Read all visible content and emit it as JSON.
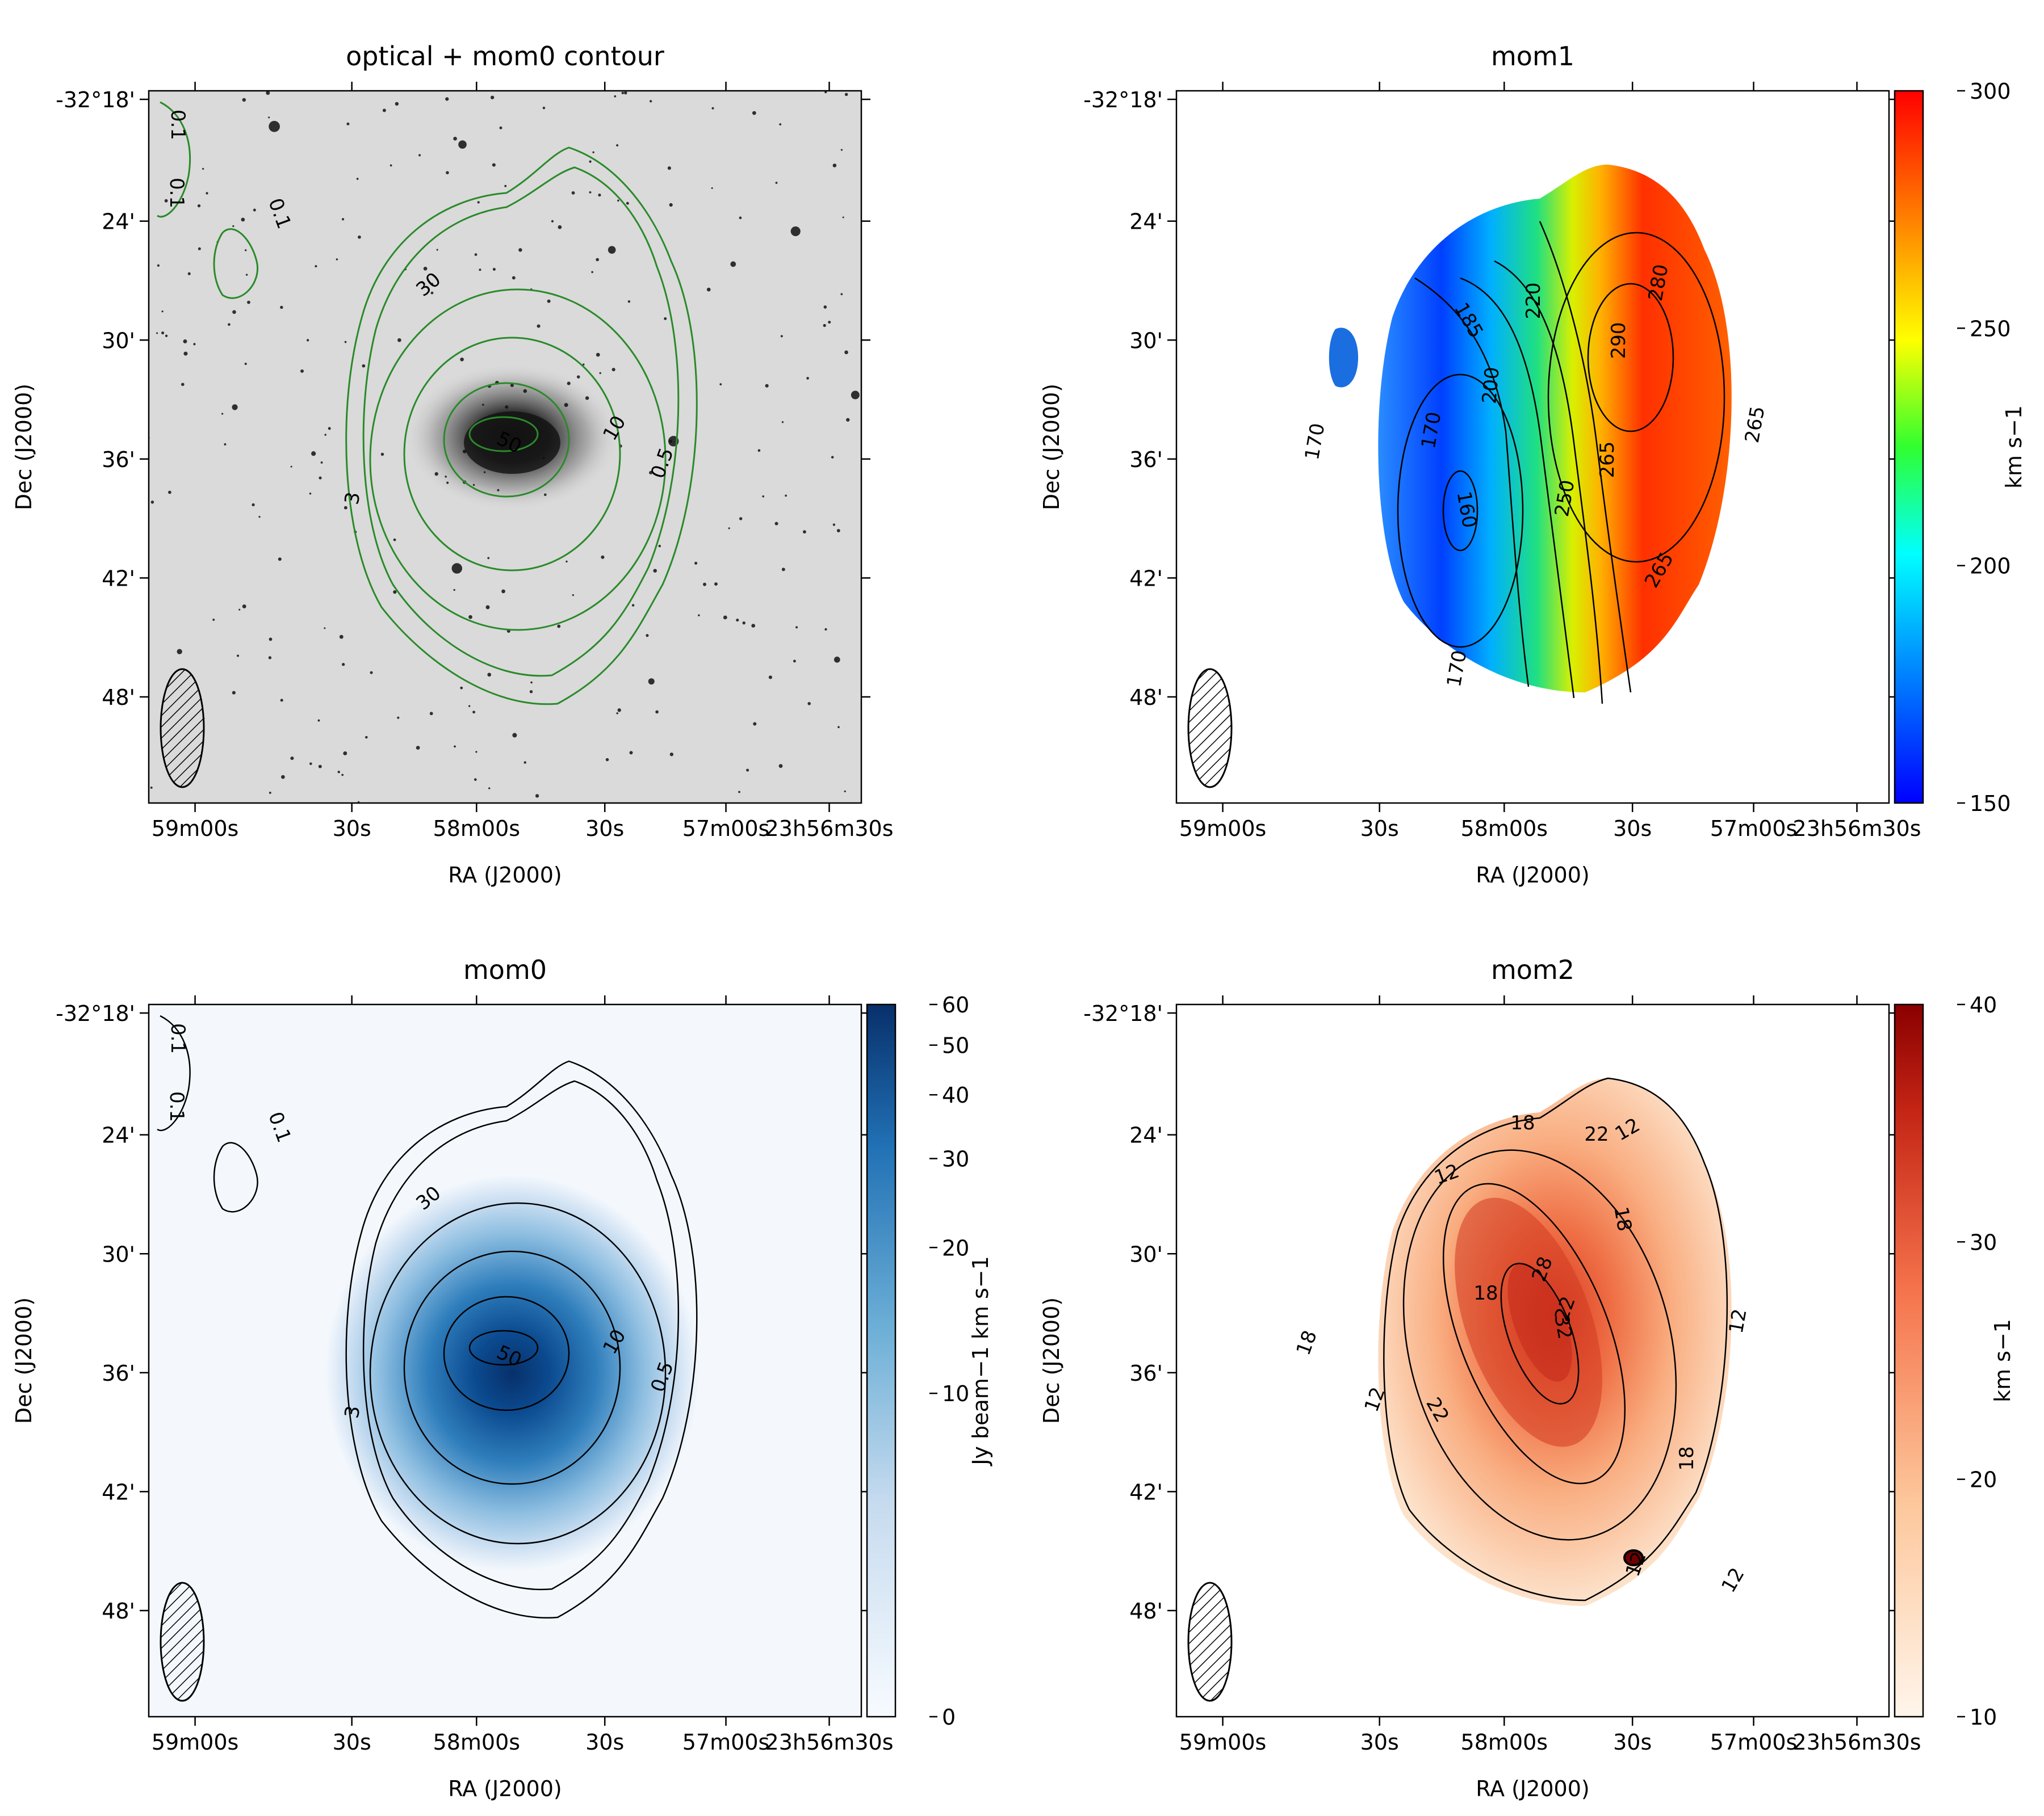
{
  "chart_data": [
    {
      "type": "heatmap",
      "title": "optical + mom0 contour",
      "xlabel": "RA (J2000)",
      "ylabel": "Dec (J2000)",
      "x_ticks": [
        "59m00s",
        "30s",
        "58m00s",
        "30s",
        "57m00s",
        "23h56m30s"
      ],
      "y_ticks": [
        "-32°18'",
        "24'",
        "30'",
        "36'",
        "42'",
        "48'"
      ],
      "contour_color": "#2a8a2a",
      "contour_labels": [
        "0.1",
        "0.1",
        "0.1",
        "0.5",
        "3",
        "10",
        "30",
        "50"
      ],
      "colormap": "greys"
    },
    {
      "type": "heatmap",
      "title": "mom1",
      "xlabel": "RA (J2000)",
      "ylabel": "Dec (J2000)",
      "x_ticks": [
        "59m00s",
        "30s",
        "58m00s",
        "30s",
        "57m00s",
        "23h56m30s"
      ],
      "y_ticks": [
        "-32°18'",
        "24'",
        "30'",
        "36'",
        "42'",
        "48'"
      ],
      "colorbar_label": "km s−1",
      "colorbar_ticks": [
        "150",
        "200",
        "250",
        "300"
      ],
      "colorbar_range": [
        150,
        300
      ],
      "colormap": "rainbow",
      "contour_labels": [
        "160",
        "170",
        "170",
        "170",
        "185",
        "200",
        "220",
        "250",
        "265",
        "265",
        "265",
        "280",
        "290"
      ]
    },
    {
      "type": "heatmap",
      "title": "mom0",
      "xlabel": "RA (J2000)",
      "ylabel": "Dec (J2000)",
      "x_ticks": [
        "59m00s",
        "30s",
        "58m00s",
        "30s",
        "57m00s",
        "23h56m30s"
      ],
      "y_ticks": [
        "-32°18'",
        "24'",
        "30'",
        "36'",
        "42'",
        "48'"
      ],
      "colorbar_label": "Jy beam−1 km s−1",
      "colorbar_ticks": [
        "0",
        "10",
        "20",
        "30",
        "40",
        "50",
        "60"
      ],
      "colorbar_range": [
        0,
        60
      ],
      "colormap": "blues",
      "contour_labels": [
        "0.1",
        "0.1",
        "0.1",
        "0.5",
        "3",
        "10",
        "30",
        "50"
      ]
    },
    {
      "type": "heatmap",
      "title": "mom2",
      "xlabel": "RA (J2000)",
      "ylabel": "Dec (J2000)",
      "x_ticks": [
        "59m00s",
        "30s",
        "58m00s",
        "30s",
        "57m00s",
        "23h56m30s"
      ],
      "y_ticks": [
        "-32°18'",
        "24'",
        "30'",
        "36'",
        "42'",
        "48'"
      ],
      "colorbar_label": "km s−1",
      "colorbar_ticks": [
        "10",
        "20",
        "30",
        "40"
      ],
      "colorbar_range": [
        10,
        40
      ],
      "colormap": "oranges",
      "contour_labels": [
        "12",
        "12",
        "12",
        "12",
        "12",
        "12",
        "18",
        "18",
        "18",
        "18",
        "18",
        "22",
        "22",
        "22",
        "28",
        "32"
      ]
    }
  ]
}
